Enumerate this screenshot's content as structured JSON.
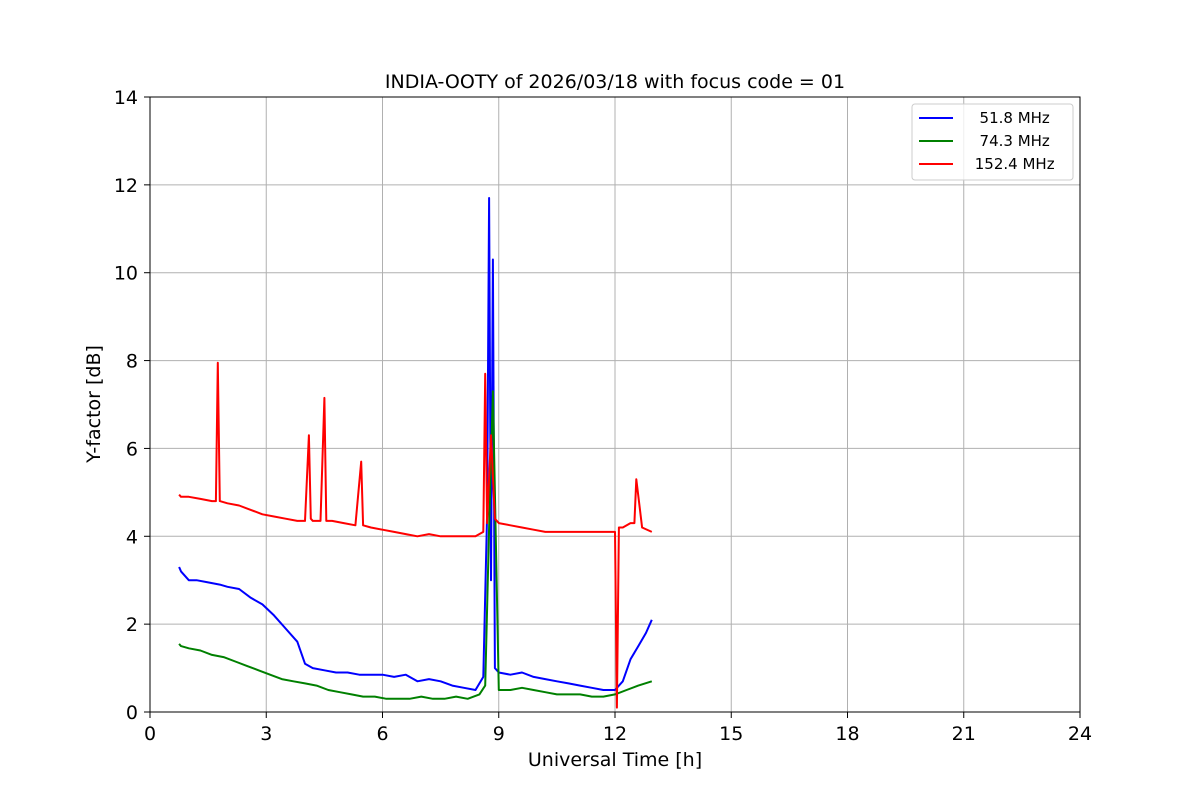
{
  "chart_data": {
    "type": "line",
    "title": "INDIA-OOTY of 2026/03/18 with focus code = 01",
    "xlabel": "Universal Time [h]",
    "ylabel": "Y-factor [dB]",
    "xlim": [
      0,
      24
    ],
    "ylim": [
      0,
      14
    ],
    "xticks": [
      0,
      3,
      6,
      9,
      12,
      15,
      18,
      21,
      24
    ],
    "yticks": [
      0,
      2,
      4,
      6,
      8,
      10,
      12,
      14
    ],
    "grid": true,
    "legend_position": "top-right",
    "series": [
      {
        "name": "  51.8 MHz",
        "color": "#0000ff",
        "x": [
          0.75,
          0.8,
          1.0,
          1.2,
          1.5,
          1.8,
          2.0,
          2.3,
          2.6,
          2.9,
          3.2,
          3.5,
          3.8,
          4.0,
          4.2,
          4.5,
          4.8,
          5.1,
          5.4,
          5.7,
          6.0,
          6.3,
          6.6,
          6.9,
          7.2,
          7.5,
          7.8,
          8.1,
          8.4,
          8.6,
          8.7,
          8.75,
          8.8,
          8.85,
          8.9,
          9.0,
          9.3,
          9.6,
          9.9,
          10.2,
          10.5,
          10.8,
          11.1,
          11.4,
          11.7,
          12.0,
          12.2,
          12.4,
          12.6,
          12.8,
          12.95
        ],
        "y": [
          3.3,
          3.2,
          3.0,
          3.0,
          2.95,
          2.9,
          2.85,
          2.8,
          2.6,
          2.45,
          2.2,
          1.9,
          1.6,
          1.1,
          1.0,
          0.95,
          0.9,
          0.9,
          0.85,
          0.85,
          0.85,
          0.8,
          0.85,
          0.7,
          0.75,
          0.7,
          0.6,
          0.55,
          0.5,
          0.8,
          4.5,
          11.7,
          3.0,
          10.3,
          1.0,
          0.9,
          0.85,
          0.9,
          0.8,
          0.75,
          0.7,
          0.65,
          0.6,
          0.55,
          0.5,
          0.5,
          0.7,
          1.2,
          1.5,
          1.8,
          2.1
        ]
      },
      {
        "name": "  74.3 MHz",
        "color": "#008000",
        "x": [
          0.75,
          0.8,
          1.0,
          1.3,
          1.6,
          1.9,
          2.2,
          2.5,
          2.8,
          3.1,
          3.4,
          3.7,
          4.0,
          4.3,
          4.6,
          4.9,
          5.2,
          5.5,
          5.8,
          6.1,
          6.4,
          6.7,
          7.0,
          7.3,
          7.6,
          7.9,
          8.2,
          8.5,
          8.65,
          8.75,
          8.85,
          9.0,
          9.3,
          9.6,
          9.9,
          10.2,
          10.5,
          10.8,
          11.1,
          11.4,
          11.7,
          12.0,
          12.3,
          12.6,
          12.95
        ],
        "y": [
          1.55,
          1.5,
          1.45,
          1.4,
          1.3,
          1.25,
          1.15,
          1.05,
          0.95,
          0.85,
          0.75,
          0.7,
          0.65,
          0.6,
          0.5,
          0.45,
          0.4,
          0.35,
          0.35,
          0.3,
          0.3,
          0.3,
          0.35,
          0.3,
          0.3,
          0.35,
          0.3,
          0.4,
          0.6,
          4.2,
          7.3,
          0.5,
          0.5,
          0.55,
          0.5,
          0.45,
          0.4,
          0.4,
          0.4,
          0.35,
          0.35,
          0.4,
          0.5,
          0.6,
          0.7
        ]
      },
      {
        "name": " 152.4 MHz",
        "color": "#ff0000",
        "x": [
          0.75,
          0.8,
          1.0,
          1.3,
          1.6,
          1.7,
          1.75,
          1.8,
          2.0,
          2.3,
          2.6,
          2.9,
          3.2,
          3.5,
          3.8,
          4.0,
          4.1,
          4.15,
          4.2,
          4.4,
          4.5,
          4.55,
          4.7,
          5.0,
          5.3,
          5.45,
          5.5,
          5.7,
          6.0,
          6.3,
          6.6,
          6.9,
          7.2,
          7.5,
          7.8,
          8.1,
          8.4,
          8.6,
          8.65,
          8.7,
          8.8,
          8.9,
          9.0,
          9.3,
          9.6,
          9.9,
          10.2,
          10.5,
          10.8,
          11.1,
          11.4,
          11.7,
          12.0,
          12.05,
          12.1,
          12.2,
          12.4,
          12.5,
          12.55,
          12.7,
          12.95
        ],
        "y": [
          4.95,
          4.9,
          4.9,
          4.85,
          4.8,
          4.8,
          7.95,
          4.8,
          4.75,
          4.7,
          4.6,
          4.5,
          4.45,
          4.4,
          4.35,
          4.35,
          6.3,
          4.4,
          4.35,
          4.35,
          7.15,
          4.35,
          4.35,
          4.3,
          4.25,
          5.7,
          4.25,
          4.2,
          4.15,
          4.1,
          4.05,
          4.0,
          4.05,
          4.0,
          4.0,
          4.0,
          4.0,
          4.1,
          7.7,
          4.3,
          6.3,
          4.4,
          4.3,
          4.25,
          4.2,
          4.15,
          4.1,
          4.1,
          4.1,
          4.1,
          4.1,
          4.1,
          4.1,
          0.1,
          4.2,
          4.2,
          4.3,
          4.3,
          5.3,
          4.2,
          4.1
        ]
      }
    ]
  }
}
